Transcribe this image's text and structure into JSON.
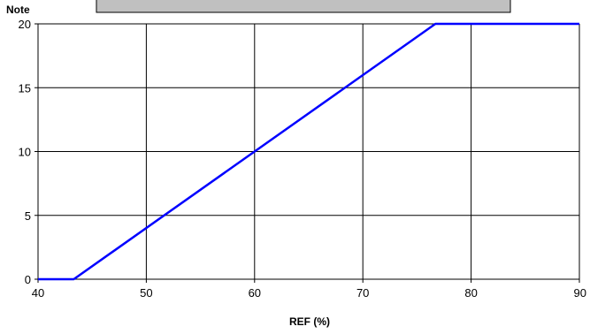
{
  "chart_data": {
    "type": "line",
    "title": "",
    "xlabel": "REF (%)",
    "ylabel": "Note",
    "xlim": [
      40,
      90
    ],
    "ylim": [
      0,
      20
    ],
    "xticks": [
      40,
      50,
      60,
      70,
      80,
      90
    ],
    "yticks": [
      0,
      5,
      10,
      15,
      20
    ],
    "grid": true,
    "legend": "none",
    "series": [
      {
        "color": "#0000ff",
        "x": [
          40,
          43.3,
          76.7,
          90
        ],
        "y": [
          0,
          0,
          20,
          20
        ]
      }
    ]
  },
  "colors": {
    "series": "#0000ff",
    "grid": "#000000",
    "banner_fill": "#c0c0c0"
  }
}
